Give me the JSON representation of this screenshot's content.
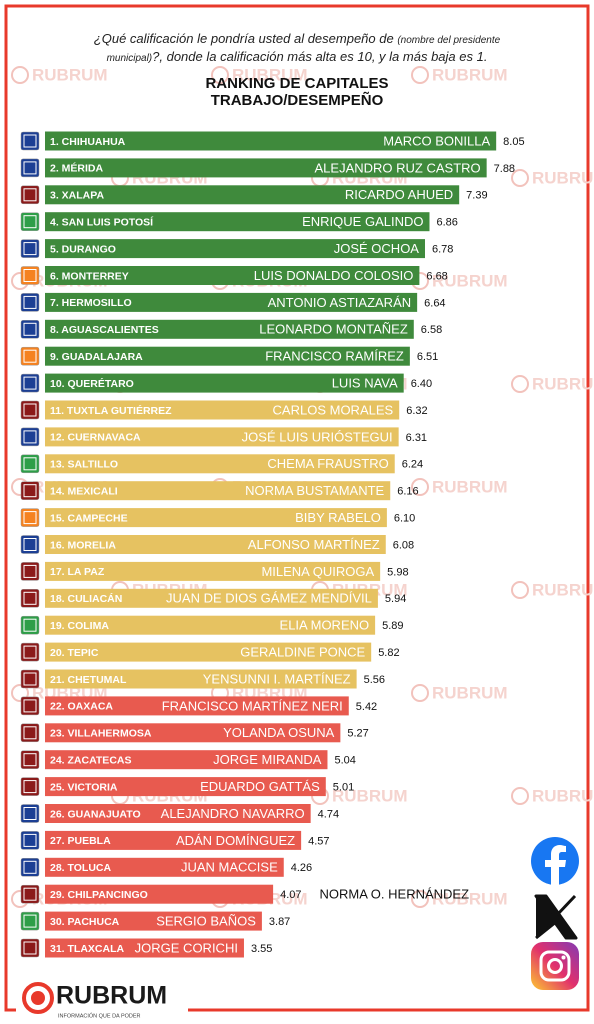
{
  "chart_data": {
    "type": "bar",
    "question": [
      "¿Qué calificación le pondría usted al desempeño de",
      "(nombre del presidente",
      "municipal)",
      "?, donde la calificación más alta es 10, y la más baja es 1."
    ],
    "title": [
      "RANKING DE CAPITALES",
      "TRABAJO/DESEMPEÑO"
    ],
    "categories": [
      "1. CHIHUAHUA",
      "2. MÉRIDA",
      "3. XALAPA",
      "4. SAN LUIS POTOSÍ",
      "5. DURANGO",
      "6. MONTERREY",
      "7. HERMOSILLO",
      "8. AGUASCALIENTES",
      "9. GUADALAJARA",
      "10. QUERÉTARO",
      "11. TUXTLA GUTIÉRREZ",
      "12. CUERNAVACA",
      "13. SALTILLO",
      "14. MEXICALI",
      "15. CAMPECHE",
      "16. MORELIA",
      "17. LA PAZ",
      "18. CULIACÁN",
      "19. COLIMA",
      "20. TEPIC",
      "21. CHETUMAL",
      "22. OAXACA",
      "23. VILLAHERMOSA",
      "24. ZACATECAS",
      "25. VICTORIA",
      "26. GUANAJUATO",
      "27. PUEBLA",
      "28. TOLUCA",
      "29. CHILPANCINGO",
      "30. PACHUCA",
      "31. TLAXCALA"
    ],
    "names": [
      "MARCO BONILLA",
      "ALEJANDRO RUZ CASTRO",
      "RICARDO AHUED",
      "ENRIQUE GALINDO",
      "JOSÉ OCHOA",
      "LUIS DONALDO COLOSIO",
      "ANTONIO ASTIAZARÁN",
      "LEONARDO MONTAÑEZ",
      "FRANCISCO RAMÍREZ",
      "LUIS NAVA",
      "CARLOS MORALES",
      "JOSÉ LUIS URIÓSTEGUI",
      "CHEMA FRAUSTRO",
      "NORMA BUSTAMANTE",
      "BIBY RABELO",
      "ALFONSO MARTÍNEZ",
      "MILENA QUIROGA",
      "JUAN DE DIOS GÁMEZ MENDÍVIL",
      "ELIA MORENO",
      "GERALDINE PONCE",
      "YENSUNNI I. MARTÍNEZ",
      "FRANCISCO MARTÍNEZ NERI",
      "YOLANDA OSUNA",
      "JORGE MIRANDA",
      "EDUARDO GATTÁS",
      "ALEJANDRO NAVARRO",
      "ADÁN DOMÍNGUEZ",
      "JUAN MACCISE",
      "NORMA O. HERNÁNDEZ",
      "SERGIO BAÑOS",
      "JORGE CORICHI"
    ],
    "values": [
      8.05,
      7.88,
      7.39,
      6.86,
      6.78,
      6.68,
      6.64,
      6.58,
      6.51,
      6.4,
      6.32,
      6.31,
      6.24,
      6.16,
      6.1,
      6.08,
      5.98,
      5.94,
      5.89,
      5.82,
      5.56,
      5.42,
      5.27,
      5.04,
      5.01,
      4.74,
      4.57,
      4.26,
      4.07,
      3.87,
      3.55
    ],
    "value_labels": [
      "8.05",
      "7.88",
      "7.39",
      "6.86",
      "6.78",
      "6.68",
      "6.64",
      "6.58",
      "6.51",
      "6.40",
      "6.32",
      "6.31",
      "6.24",
      "6.16",
      "6.10",
      "6.08",
      "5.98",
      "5.94",
      "5.89",
      "5.82",
      "5.56",
      "5.42",
      "5.27",
      "5.04",
      "5.01",
      "4.74",
      "4.57",
      "4.26",
      "4.07",
      "3.87",
      "3.55"
    ],
    "colors": [
      "#3f8a3c",
      "#3f8a3c",
      "#3f8a3c",
      "#3f8a3c",
      "#3f8a3c",
      "#3f8a3c",
      "#3f8a3c",
      "#3f8a3c",
      "#3f8a3c",
      "#3f8a3c",
      "#e6c261",
      "#e6c261",
      "#e6c261",
      "#e6c261",
      "#e6c261",
      "#e6c261",
      "#e6c261",
      "#e6c261",
      "#e6c261",
      "#e6c261",
      "#e6c261",
      "#e85a4f",
      "#e85a4f",
      "#e85a4f",
      "#e85a4f",
      "#e85a4f",
      "#e85a4f",
      "#e85a4f",
      "#e85a4f",
      "#e85a4f",
      "#e85a4f"
    ],
    "icon_colors": [
      "#1c3f94",
      "#1c3f94",
      "#8b1a1a",
      "#2e9e48",
      "#1c3f94",
      "#f58220",
      "#1c3f94",
      "#1c3f94",
      "#f58220",
      "#1c3f94",
      "#8b1a1a",
      "#1c3f94",
      "#2e9e48",
      "#8b1a1a",
      "#f58220",
      "#1c3f94",
      "#8b1a1a",
      "#8b1a1a",
      "#2e9e48",
      "#8b1a1a",
      "#8b1a1a",
      "#8b1a1a",
      "#8b1a1a",
      "#8b1a1a",
      "#8b1a1a",
      "#1c3f94",
      "#1c3f94",
      "#1c3f94",
      "#8b1a1a",
      "#2e9e48",
      "#8b1a1a"
    ],
    "xlim": [
      0,
      8.6
    ],
    "brand": "RUBRUM",
    "tagline": "INFORMACIÓN QUE DA PODER"
  }
}
